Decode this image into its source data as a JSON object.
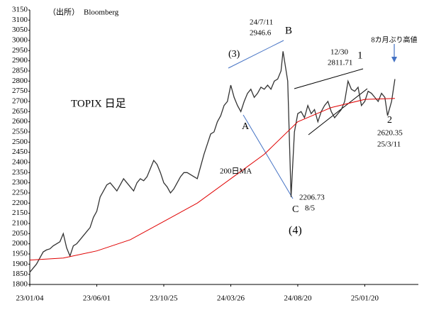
{
  "chart_data": {
    "type": "line",
    "xlim": [
      0,
      580
    ],
    "xticks": [
      {
        "value": 0,
        "label": "23/01/04"
      },
      {
        "value": 100,
        "label": "23/06/01"
      },
      {
        "value": 200,
        "label": "23/10/25"
      },
      {
        "value": 300,
        "label": "24/03/26"
      },
      {
        "value": 400,
        "label": "24/08/20"
      },
      {
        "value": 500,
        "label": "25/01/20"
      }
    ],
    "ylim": [
      1800,
      3150
    ],
    "yticks": [
      1800,
      1850,
      1900,
      1950,
      2000,
      2050,
      2100,
      2150,
      2200,
      2250,
      2300,
      2350,
      2400,
      2450,
      2500,
      2550,
      2600,
      2650,
      2700,
      2750,
      2800,
      2850,
      2900,
      2950,
      3000,
      3050,
      3100,
      3150
    ],
    "grid": false,
    "series": [
      {
        "color": "#333333",
        "x": [
          0,
          5,
          10,
          15,
          20,
          25,
          30,
          35,
          40,
          45,
          50,
          55,
          60,
          65,
          70,
          75,
          80,
          85,
          90,
          95,
          100,
          105,
          110,
          115,
          120,
          125,
          130,
          135,
          140,
          145,
          150,
          155,
          160,
          165,
          170,
          175,
          180,
          185,
          190,
          195,
          200,
          205,
          210,
          215,
          220,
          225,
          230,
          235,
          240,
          245,
          250,
          255,
          260,
          265,
          270,
          275,
          280,
          285,
          290,
          295,
          300,
          305,
          310,
          315,
          320,
          325,
          330,
          335,
          340,
          345,
          350,
          355,
          360,
          365,
          370,
          375,
          378,
          385,
          390,
          395,
          400,
          405,
          410,
          415,
          420,
          425,
          430,
          435,
          440,
          445,
          450,
          455,
          460,
          465,
          470,
          475,
          480,
          485,
          490,
          495,
          500,
          505,
          510,
          515,
          520,
          525,
          530,
          534,
          540,
          545
        ],
        "values": [
          1860,
          1880,
          1900,
          1930,
          1960,
          1970,
          1975,
          1990,
          2000,
          2010,
          2050,
          1980,
          1940,
          1990,
          2000,
          2020,
          2040,
          2060,
          2080,
          2130,
          2160,
          2230,
          2260,
          2290,
          2300,
          2280,
          2260,
          2290,
          2320,
          2300,
          2280,
          2260,
          2300,
          2320,
          2310,
          2330,
          2370,
          2410,
          2390,
          2350,
          2300,
          2280,
          2250,
          2270,
          2300,
          2330,
          2350,
          2350,
          2340,
          2330,
          2320,
          2380,
          2440,
          2490,
          2540,
          2550,
          2600,
          2630,
          2680,
          2700,
          2780,
          2720,
          2680,
          2650,
          2700,
          2740,
          2760,
          2720,
          2740,
          2770,
          2760,
          2780,
          2760,
          2800,
          2810,
          2850,
          2946.6,
          2800,
          2230,
          2550,
          2640,
          2650,
          2620,
          2680,
          2640,
          2660,
          2600,
          2650,
          2680,
          2700,
          2650,
          2620,
          2640,
          2660,
          2700,
          2800,
          2760,
          2750,
          2770,
          2680,
          2700,
          2750,
          2740,
          2720,
          2700,
          2740,
          2720,
          2630,
          2700,
          2810
        ]
      },
      {
        "color": "#e00000",
        "x": [
          0,
          50,
          100,
          150,
          200,
          250,
          300,
          350,
          400,
          450,
          500,
          545
        ],
        "values": [
          1920,
          1930,
          1965,
          2020,
          2110,
          2200,
          2320,
          2440,
          2600,
          2670,
          2710,
          2715
        ]
      }
    ],
    "annotations": [
      "（出所）",
      "Bloomberg",
      "TOPIX 日足",
      "(3)",
      "24/7/11",
      "2946.6",
      "B",
      "A",
      "200日MA",
      "2206.73",
      "8/5",
      "C",
      "(4)",
      "12/30",
      "2811.71",
      "1",
      "8カ月ぶり高値",
      "2",
      "2620.35",
      "25/3/11"
    ]
  }
}
